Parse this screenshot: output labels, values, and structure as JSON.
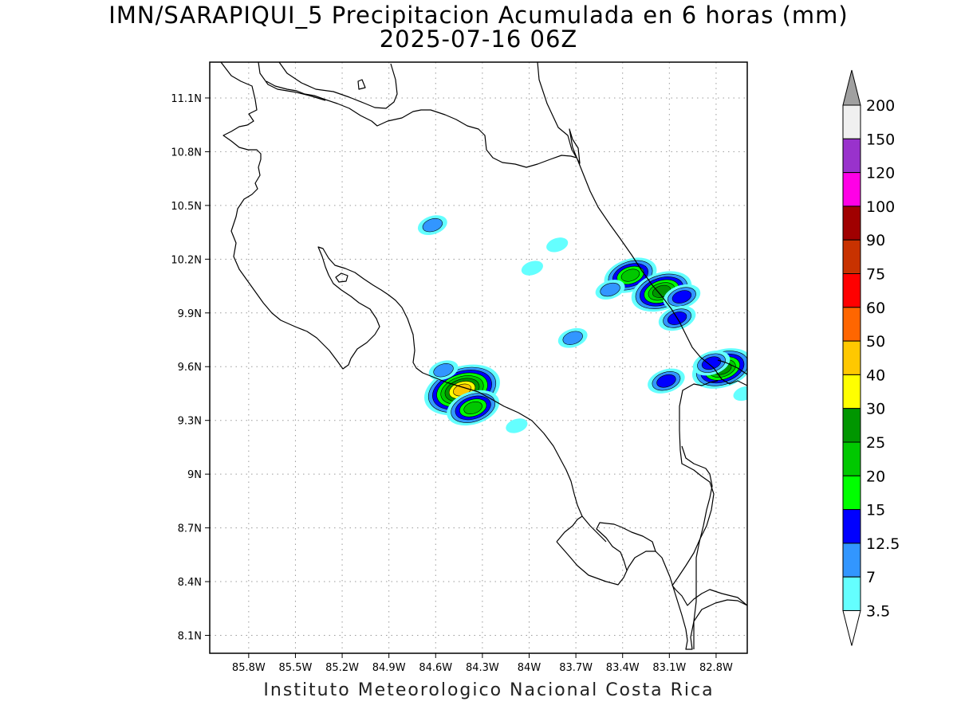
{
  "title": "IMN/SARAPIQUI_5 Precipitacion Acumulada en 6 horas (mm)",
  "subtitle": "2025-07-16 06Z",
  "footer": "Instituto Meteorologico Nacional Costa Rica",
  "map": {
    "lon_range": [
      -86.05,
      -82.6
    ],
    "lat_range": [
      8.0,
      11.3
    ],
    "lon_ticks": [
      "85.8W",
      "85.5W",
      "85.2W",
      "84.9W",
      "84.6W",
      "84.3W",
      "84W",
      "83.7W",
      "83.4W",
      "83.1W",
      "82.8W"
    ],
    "lat_ticks": [
      "11.1N",
      "10.8N",
      "10.5N",
      "10.2N",
      "9.9N",
      "9.6N",
      "9.3N",
      "9N",
      "8.7N",
      "8.4N",
      "8.1N"
    ],
    "grid": "dotted"
  },
  "legend": {
    "labels": [
      "200",
      "150",
      "120",
      "100",
      "90",
      "75",
      "60",
      "50",
      "40",
      "30",
      "25",
      "20",
      "15",
      "12.5",
      "7",
      "3.5"
    ],
    "colors": [
      "#f0f0f0",
      "#9932cc",
      "#ff00e6",
      "#a00000",
      "#c83200",
      "#ff0000",
      "#ff6600",
      "#ffc800",
      "#ffff00",
      "#009600",
      "#00c800",
      "#00ff00",
      "#0000ff",
      "#3296ff",
      "#64ffff"
    ],
    "over_color": "#a0a0a0",
    "under_color": "#ffffff"
  },
  "precip_cells": [
    {
      "lon": -84.43,
      "lat": 9.47,
      "mm": 40
    },
    {
      "lon": -84.36,
      "lat": 9.37,
      "mm": 20
    },
    {
      "lon": -84.55,
      "lat": 9.58,
      "mm": 7
    },
    {
      "lon": -84.62,
      "lat": 10.39,
      "mm": 7
    },
    {
      "lon": -84.08,
      "lat": 9.27,
      "mm": 3.5
    },
    {
      "lon": -83.72,
      "lat": 9.76,
      "mm": 7
    },
    {
      "lon": -83.82,
      "lat": 10.28,
      "mm": 3.5
    },
    {
      "lon": -83.35,
      "lat": 10.11,
      "mm": 20
    },
    {
      "lon": -83.15,
      "lat": 10.02,
      "mm": 25
    },
    {
      "lon": -83.02,
      "lat": 9.99,
      "mm": 12.5
    },
    {
      "lon": -83.05,
      "lat": 9.87,
      "mm": 12.5
    },
    {
      "lon": -83.48,
      "lat": 10.03,
      "mm": 7
    },
    {
      "lon": -83.12,
      "lat": 9.52,
      "mm": 12.5
    },
    {
      "lon": -82.76,
      "lat": 9.59,
      "mm": 25
    },
    {
      "lon": -82.83,
      "lat": 9.62,
      "mm": 12.5
    },
    {
      "lon": -82.62,
      "lat": 9.45,
      "mm": 3.5
    },
    {
      "lon": -83.98,
      "lat": 10.15,
      "mm": 3.5
    }
  ]
}
